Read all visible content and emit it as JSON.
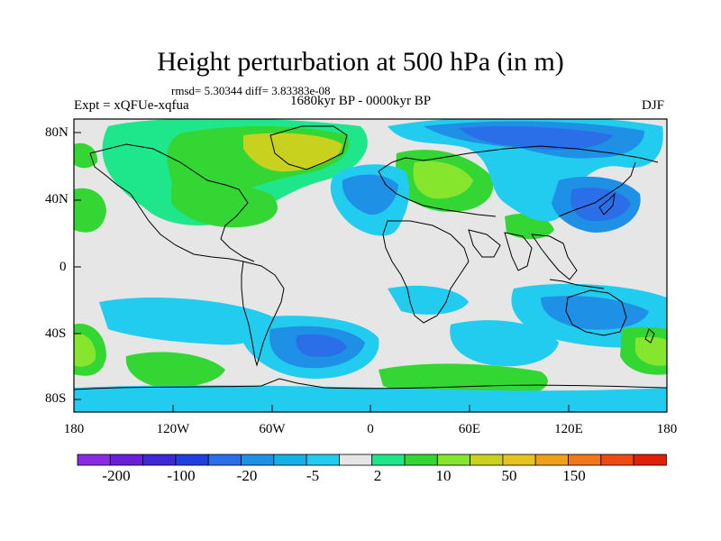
{
  "title": "Height perturbation at 500 hPa (in m)",
  "stats": "rmsd= 5.30344 diff= 3.83383e-08",
  "experiment": "Expt = xQFUe-xqfua",
  "period": "1680kyr BP - 0000kyr BP",
  "season": "DJF",
  "lat_labels": [
    "80N",
    "40N",
    "0",
    "40S",
    "80S"
  ],
  "lon_labels": [
    "180",
    "120W",
    "60W",
    "0",
    "60E",
    "120E",
    "180"
  ],
  "colorbar": {
    "colors": [
      "#8a2be2",
      "#6a1fd9",
      "#3f28d6",
      "#1e40e0",
      "#2a6fe8",
      "#1e90e6",
      "#12b2e8",
      "#22ccee",
      "#e6e6e6",
      "#1ee68a",
      "#33d633",
      "#86e62e",
      "#c8d21e",
      "#e6c31e",
      "#eea01a",
      "#f07818",
      "#ee4a14",
      "#e01e0a"
    ],
    "labels": [
      "-200",
      "-100",
      "-20",
      "-5",
      "2",
      "10",
      "50",
      "150"
    ]
  },
  "palette": {
    "blue": "#2a6fe8",
    "mid_blue": "#1e90e6",
    "light_blue": "#22ccee",
    "neutral": "#e6e6e6",
    "green": "#1ee68a",
    "lime": "#33d633",
    "yellowgreen": "#86e62e",
    "olive": "#c8d21e"
  }
}
